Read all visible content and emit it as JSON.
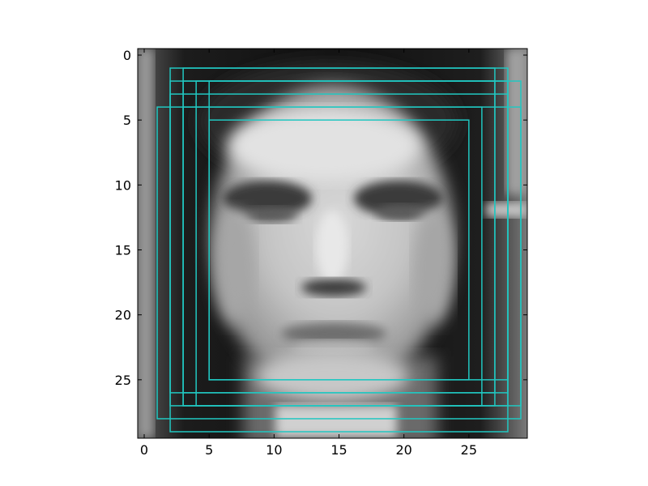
{
  "chart_data": {
    "type": "image",
    "image_size": [
      30,
      30
    ],
    "xlim": [
      -0.5,
      29.5
    ],
    "ylim": [
      29.5,
      -0.5
    ],
    "x_ticks": [
      0,
      5,
      10,
      15,
      20,
      25
    ],
    "y_ticks": [
      0,
      5,
      10,
      15,
      20,
      25
    ],
    "x_tick_labels": [
      "0",
      "5",
      "10",
      "15",
      "20",
      "25"
    ],
    "y_tick_labels": [
      "0",
      "5",
      "10",
      "15",
      "20",
      "25"
    ],
    "colormap": "gray",
    "box_color": "#21c7c1",
    "boxes": [
      {
        "x0": 2,
        "y0": 1,
        "x1": 27,
        "y1": 26
      },
      {
        "x0": 3,
        "y0": 1,
        "x1": 28,
        "y1": 26
      },
      {
        "x0": 2,
        "y0": 2,
        "x1": 27,
        "y1": 27
      },
      {
        "x0": 3,
        "y0": 2,
        "x1": 28,
        "y1": 27
      },
      {
        "x0": 4,
        "y0": 2,
        "x1": 29,
        "y1": 27
      },
      {
        "x0": 5,
        "y0": 2,
        "x1": 28,
        "y1": 25
      },
      {
        "x0": 2,
        "y0": 3,
        "x1": 28,
        "y1": 29
      },
      {
        "x0": 1,
        "y0": 4,
        "x1": 29,
        "y1": 28
      },
      {
        "x0": 3,
        "y0": 4,
        "x1": 26,
        "y1": 27
      },
      {
        "x0": 5,
        "y0": 5,
        "x1": 25,
        "y1": 25
      }
    ]
  }
}
